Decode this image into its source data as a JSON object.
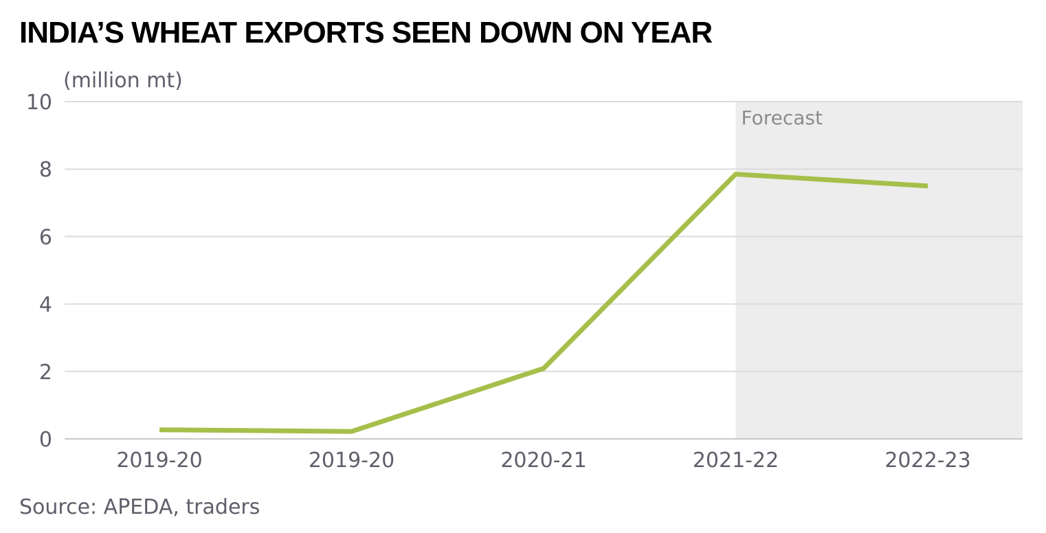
{
  "chart_data": {
    "type": "line",
    "title": "INDIA’S WHEAT EXPORTS SEEN DOWN ON YEAR",
    "ylabel": "(million mt)",
    "categories": [
      "2019-20",
      "2019-20",
      "2020-21",
      "2021-22",
      "2022-23"
    ],
    "series": [
      {
        "values": [
          0.27,
          0.22,
          2.09,
          7.85,
          7.5
        ],
        "color": "#a6bf4b"
      }
    ],
    "ylim": [
      0,
      10
    ],
    "yticks": [
      0,
      2,
      4,
      6,
      8,
      10
    ],
    "grid": true,
    "forecast_region": {
      "label": "Forecast",
      "from_category_index": 3,
      "color": "#ededed"
    },
    "source": "Source: APEDA, traders"
  }
}
